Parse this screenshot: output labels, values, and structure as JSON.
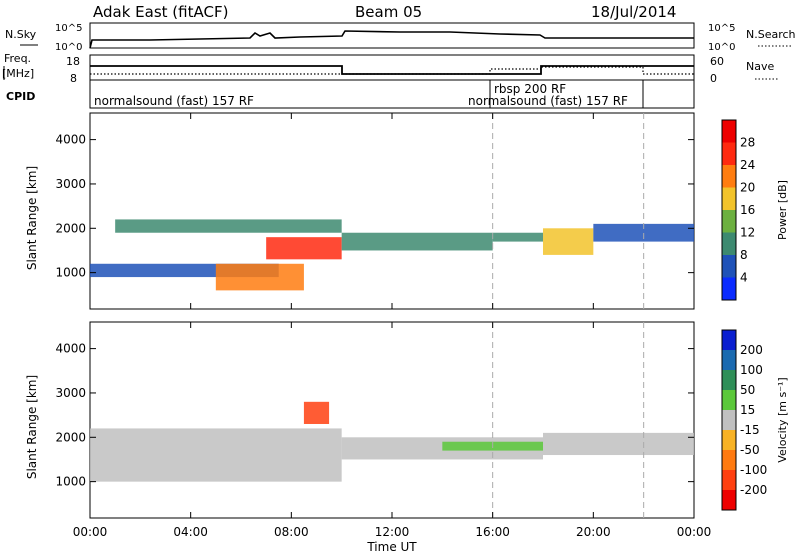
{
  "header": {
    "station": "Adak East (fitACF)",
    "beam": "Beam 05",
    "date": "18/Jul/2014"
  },
  "top_panel": {
    "left_label": "N.Sky",
    "left_ticks": [
      "10^5",
      "10^0"
    ],
    "right_label": "N.Search",
    "right_ticks": [
      "10^5",
      "10^0"
    ]
  },
  "freq_panel": {
    "left_label_1": "Freq.",
    "left_label_2": "[MHz]",
    "left_ticks": [
      "18",
      "8"
    ],
    "right_label": "Nave",
    "right_ticks": [
      "60",
      "0"
    ]
  },
  "cpid_panel": {
    "label": "CPID",
    "segments": [
      "normalsound (fast) 157 RF",
      "rbsp 200 RF",
      "normalsound (fast) 157 RF"
    ]
  },
  "panels": {
    "y_axis_label": "Slant Range [km]",
    "y_ticks": [
      "1000",
      "2000",
      "3000",
      "4000"
    ],
    "x_ticks": [
      "00:00",
      "04:00",
      "08:00",
      "12:00",
      "16:00",
      "20:00",
      "00:00"
    ],
    "x_label": "Time UT"
  },
  "power_colorbar": {
    "label": "Power [dB]",
    "ticks": [
      "4",
      "8",
      "12",
      "16",
      "20",
      "24",
      "28"
    ],
    "colors": [
      "#0a2bff",
      "#1f52b8",
      "#3d8a70",
      "#6cb040",
      "#f2c32b",
      "#ff7d10",
      "#ff2a10",
      "#ee0000"
    ]
  },
  "velocity_colorbar": {
    "label": "Velocity [m s⁻¹]",
    "ticks": [
      "200",
      "100",
      "50",
      "15",
      "-15",
      "-50",
      "-100",
      "-200"
    ],
    "colors": [
      "#0a1fd0",
      "#1a6ab0",
      "#2f8f58",
      "#5bc83a",
      "#c0c0c0",
      "#f7b225",
      "#ff7a10",
      "#ff4010",
      "#ee0000"
    ]
  },
  "chart_data": {
    "type": "heatmap",
    "title": "Adak East (fitACF) Beam 05 18/Jul/2014",
    "xlabel": "Time UT",
    "ylabel": "Slant Range [km]",
    "xlim_hours": [
      0,
      24
    ],
    "ylim_km": [
      180,
      4600
    ],
    "cpid_boundaries_hours": [
      16,
      22
    ],
    "frequency_MHz": [
      {
        "start_hour": 0,
        "end_hour": 10,
        "value": 13.4
      },
      {
        "start_hour": 10,
        "end_hour": 18,
        "value": 10.5
      },
      {
        "start_hour": 18,
        "end_hour": 24,
        "value": 13.4
      }
    ],
    "nave": [
      {
        "start_hour": 0,
        "end_hour": 16,
        "value": 14
      },
      {
        "start_hour": 16,
        "end_hour": 18,
        "value": 25
      },
      {
        "start_hour": 18,
        "end_hour": 22,
        "value": 33
      },
      {
        "start_hour": 22,
        "end_hour": 24,
        "value": 14
      }
    ],
    "power_echo_bands": [
      {
        "start_hour": 0.0,
        "end_hour": 7.5,
        "range_km": [
          900,
          1200
        ],
        "power_dB": 6
      },
      {
        "start_hour": 5.0,
        "end_hour": 8.5,
        "range_km": [
          600,
          1200
        ],
        "power_dB": 20
      },
      {
        "start_hour": 1.0,
        "end_hour": 10.0,
        "range_km": [
          1900,
          2200
        ],
        "power_dB": 8
      },
      {
        "start_hour": 7.0,
        "end_hour": 10.0,
        "range_km": [
          1300,
          1800
        ],
        "power_dB": 26
      },
      {
        "start_hour": 10.0,
        "end_hour": 16.0,
        "range_km": [
          1500,
          1900
        ],
        "power_dB": 10
      },
      {
        "start_hour": 16.0,
        "end_hour": 18.0,
        "range_km": [
          1700,
          1900
        ],
        "power_dB": 10
      },
      {
        "start_hour": 18.0,
        "end_hour": 20.0,
        "range_km": [
          1400,
          2000
        ],
        "power_dB": 18
      },
      {
        "start_hour": 20.0,
        "end_hour": 24.0,
        "range_km": [
          1700,
          2100
        ],
        "power_dB": 6
      }
    ],
    "velocity_echo_bands": [
      {
        "start_hour": 0.0,
        "end_hour": 10.0,
        "range_km": [
          1000,
          2200
        ],
        "velocity_ms": 0
      },
      {
        "start_hour": 10.0,
        "end_hour": 18.0,
        "range_km": [
          1500,
          2000
        ],
        "velocity_ms": 0
      },
      {
        "start_hour": 14.0,
        "end_hour": 18.0,
        "range_km": [
          1700,
          1900
        ],
        "velocity_ms": 30
      },
      {
        "start_hour": 18.0,
        "end_hour": 24.0,
        "range_km": [
          1600,
          2100
        ],
        "velocity_ms": 0
      },
      {
        "start_hour": 8.5,
        "end_hour": 9.5,
        "range_km": [
          2300,
          2800
        ],
        "velocity_ms": -120
      }
    ]
  }
}
